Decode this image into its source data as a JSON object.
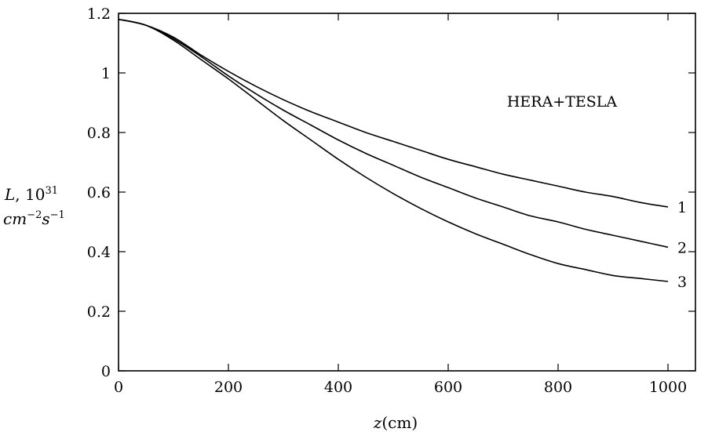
{
  "chart_data": {
    "type": "line",
    "annotation": "HERA+TESLA",
    "xlabel": {
      "var": "z",
      "unit": "(cm)"
    },
    "ylabel": {
      "line1_var": "L",
      "line1_text": ", 10",
      "line1_exp": "31",
      "line2_a": "cm",
      "line2_a_exp": "−2",
      "line2_b": "s",
      "line2_b_exp": "−1"
    },
    "xlim": [
      0,
      1050
    ],
    "ylim": [
      0,
      1.2
    ],
    "xticks": [
      0,
      200,
      400,
      600,
      800,
      1000
    ],
    "xtick_labels": [
      "0",
      "200",
      "400",
      "600",
      "800",
      "1000"
    ],
    "yticks": [
      0,
      0.2,
      0.4,
      0.6,
      0.8,
      1,
      1.2
    ],
    "ytick_labels": [
      "0",
      "0.2",
      "0.4",
      "0.6",
      "0.8",
      "1",
      "1.2"
    ],
    "grid": false,
    "x": [
      0,
      50,
      100,
      150,
      200,
      250,
      300,
      350,
      400,
      450,
      500,
      550,
      600,
      650,
      700,
      750,
      800,
      850,
      900,
      950,
      1000
    ],
    "series": [
      {
        "name": "1",
        "values": [
          1.18,
          1.16,
          1.12,
          1.06,
          1.005,
          0.955,
          0.91,
          0.87,
          0.835,
          0.8,
          0.77,
          0.74,
          0.71,
          0.685,
          0.66,
          0.64,
          0.62,
          0.6,
          0.585,
          0.565,
          0.55
        ]
      },
      {
        "name": "2",
        "values": [
          1.18,
          1.16,
          1.115,
          1.055,
          0.99,
          0.93,
          0.875,
          0.825,
          0.775,
          0.73,
          0.69,
          0.65,
          0.615,
          0.58,
          0.55,
          0.52,
          0.5,
          0.475,
          0.455,
          0.435,
          0.415
        ]
      },
      {
        "name": "3",
        "values": [
          1.18,
          1.16,
          1.11,
          1.045,
          0.98,
          0.91,
          0.84,
          0.775,
          0.71,
          0.65,
          0.595,
          0.545,
          0.5,
          0.46,
          0.425,
          0.39,
          0.36,
          0.34,
          0.32,
          0.31,
          0.3
        ]
      }
    ]
  }
}
